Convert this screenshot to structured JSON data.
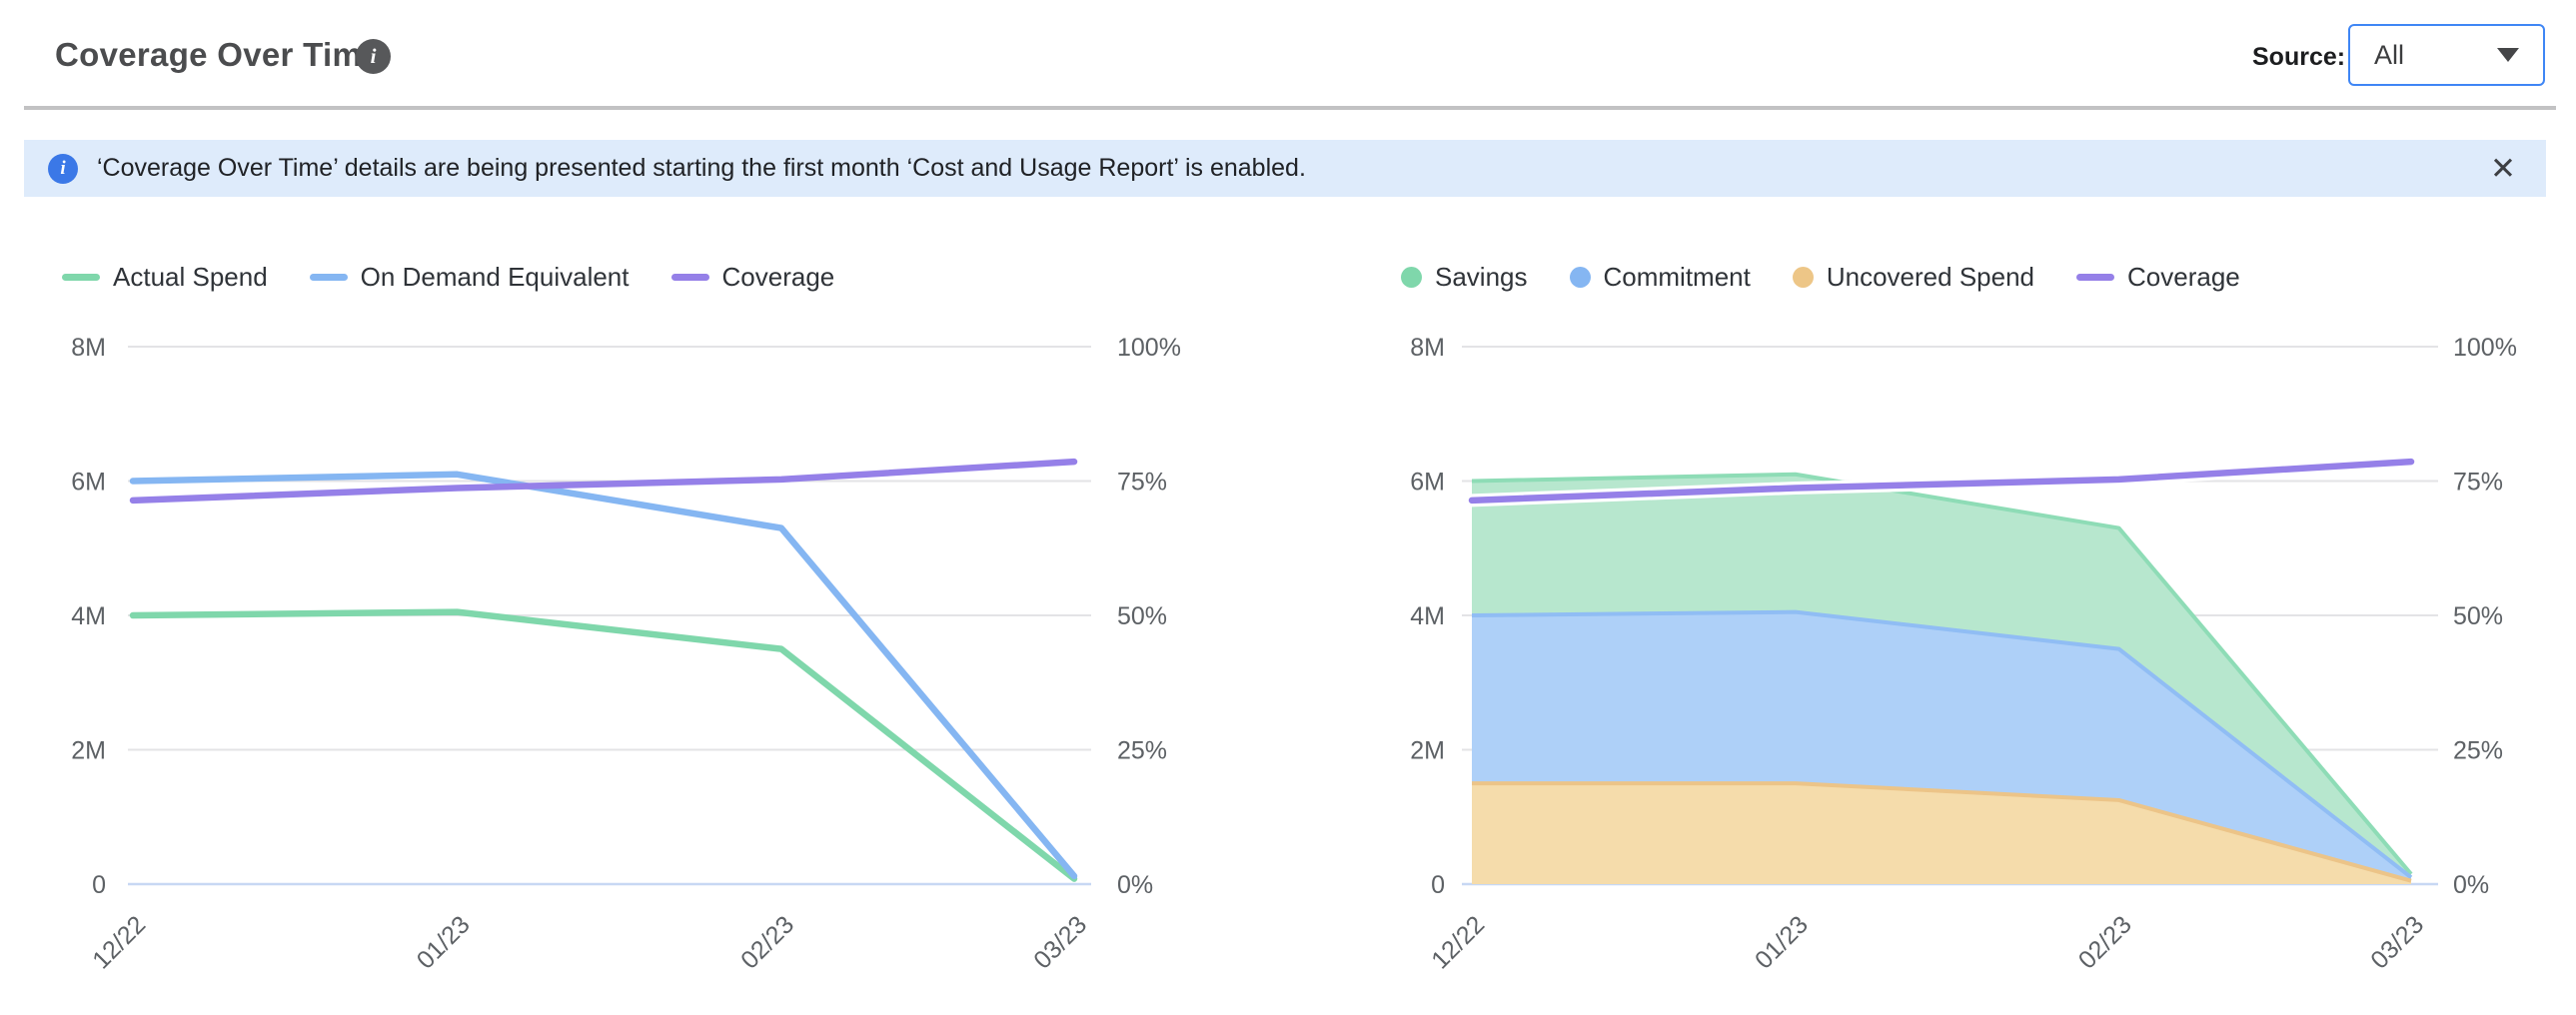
{
  "header": {
    "title": "Coverage Over Time",
    "info_glyph": "i",
    "source_label": "Source:",
    "source_value": "All"
  },
  "banner": {
    "icon_glyph": "i",
    "message": "‘Coverage Over Time’ details are being presented starting the first month ‘Cost and Usage Report’ is enabled.",
    "close_glyph": "✕"
  },
  "colors": {
    "green": "#7fd7ab",
    "green_fill": "#b7e7ce",
    "green_edge": "#8edcb6",
    "blue": "#85b6f2",
    "blue_fill": "#aed0f8",
    "blue_edge": "#90bdf4",
    "orange": "#edc687",
    "orange_fill": "#f5dcab",
    "orange_edge": "#ecc488",
    "purple": "#9580e8",
    "grid": "#e3e3e6",
    "zero_line": "#c7d8f3",
    "axis_text": "#5d6165",
    "accent_blue": "#3f86f5",
    "banner_bg": "#deebfb"
  },
  "chart_data": [
    {
      "id": "spend-lines",
      "type": "line",
      "title": "",
      "categories": [
        "12/22",
        "01/23",
        "02/23",
        "03/23"
      ],
      "x_day_offsets": [
        0,
        31,
        62,
        90
      ],
      "grid": true,
      "legend_position": "top-left",
      "left_axis": {
        "unit": "M",
        "ticks": [
          "0",
          "2M",
          "4M",
          "6M",
          "8M"
        ],
        "range_millions": [
          0,
          8
        ]
      },
      "right_axis": {
        "unit": "%",
        "ticks": [
          "0%",
          "25%",
          "50%",
          "75%",
          "100%"
        ],
        "range": [
          0,
          100
        ]
      },
      "legend": [
        {
          "label": "Actual Spend",
          "swatch": "line",
          "color_key": "green"
        },
        {
          "label": "On Demand Equivalent",
          "swatch": "line",
          "color_key": "blue"
        },
        {
          "label": "Coverage",
          "swatch": "line",
          "color_key": "purple"
        }
      ],
      "series": [
        {
          "name": "Actual Spend",
          "type": "line",
          "axis": "left",
          "color_key": "green",
          "values_millions": [
            4.0,
            4.05,
            3.5,
            0.08
          ]
        },
        {
          "name": "On Demand Equivalent",
          "type": "line",
          "axis": "left",
          "color_key": "blue",
          "values_millions": [
            6.0,
            6.1,
            5.3,
            0.12
          ]
        },
        {
          "name": "Coverage",
          "type": "line",
          "axis": "right",
          "color_key": "purple",
          "values_percent": [
            71.4,
            73.7,
            75.3,
            78.6
          ]
        }
      ]
    },
    {
      "id": "coverage-areas",
      "type": "area",
      "title": "",
      "categories": [
        "12/22",
        "01/23",
        "02/23",
        "03/23"
      ],
      "x_day_offsets": [
        0,
        31,
        62,
        90
      ],
      "grid": true,
      "legend_position": "top-left",
      "left_axis": {
        "unit": "M",
        "ticks": [
          "0",
          "2M",
          "4M",
          "6M",
          "8M"
        ],
        "range_millions": [
          0,
          8
        ]
      },
      "right_axis": {
        "unit": "%",
        "ticks": [
          "0%",
          "25%",
          "50%",
          "75%",
          "100%"
        ],
        "range": [
          0,
          100
        ]
      },
      "legend": [
        {
          "label": "Savings",
          "swatch": "dot",
          "color_key": "green"
        },
        {
          "label": "Commitment",
          "swatch": "dot",
          "color_key": "blue"
        },
        {
          "label": "Uncovered Spend",
          "swatch": "dot",
          "color_key": "orange"
        },
        {
          "label": "Coverage",
          "swatch": "line",
          "color_key": "purple"
        }
      ],
      "series": [
        {
          "name": "Uncovered Spend",
          "type": "area",
          "stack": true,
          "axis": "left",
          "color_key": "orange",
          "values_millions": [
            1.5,
            1.5,
            1.25,
            0.05
          ]
        },
        {
          "name": "Commitment",
          "type": "area",
          "stack": true,
          "axis": "left",
          "color_key": "blue",
          "values_millions": [
            2.5,
            2.55,
            2.25,
            0.05
          ]
        },
        {
          "name": "Savings",
          "type": "area",
          "stack": true,
          "axis": "left",
          "color_key": "green",
          "values_millions": [
            2.0,
            2.05,
            1.8,
            0.05
          ]
        },
        {
          "name": "Coverage",
          "type": "line",
          "axis": "right",
          "color_key": "purple",
          "halo": true,
          "values_percent": [
            71.4,
            73.7,
            75.3,
            78.6
          ]
        }
      ]
    }
  ]
}
